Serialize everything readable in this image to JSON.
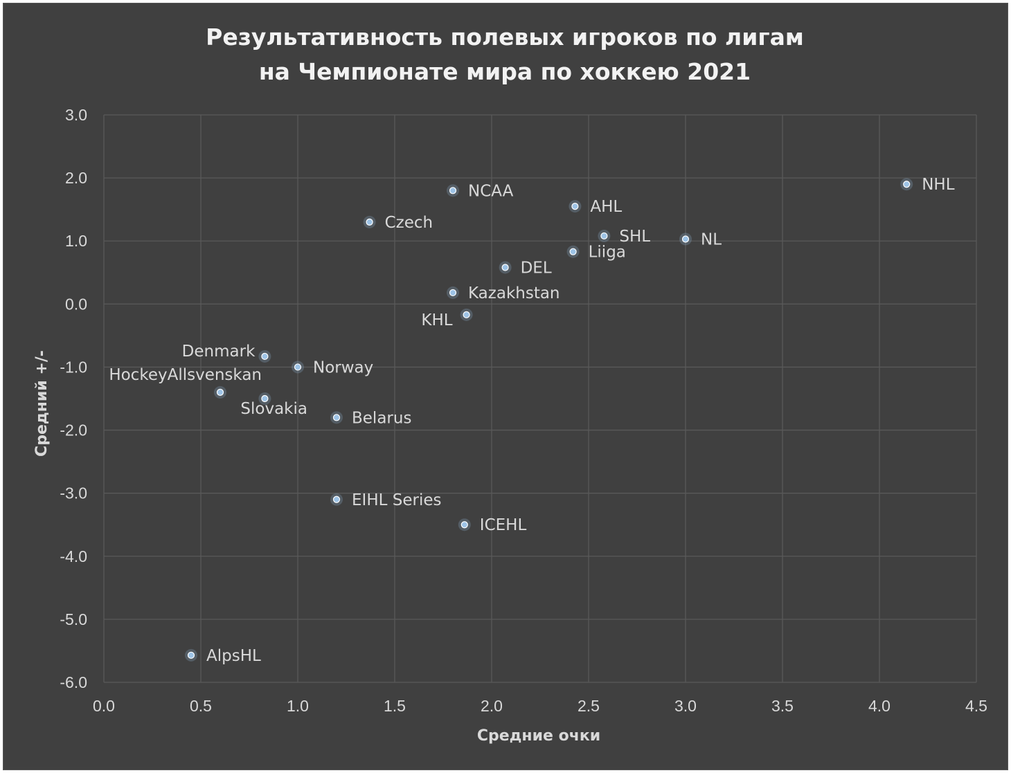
{
  "chart_data": {
    "type": "scatter",
    "title_line1": "Результативность полевых игроков по лигам",
    "title_line2": "на Чемпионате мира по хоккею 2021",
    "xlabel": "Средние очки",
    "ylabel": "Средний +/-",
    "xlim": [
      0,
      4.5
    ],
    "ylim": [
      -6,
      3
    ],
    "x_ticks": [
      "0.0",
      "0.5",
      "1.0",
      "1.5",
      "2.0",
      "2.5",
      "3.0",
      "3.5",
      "4.0",
      "4.5"
    ],
    "y_ticks": [
      "3.0",
      "2.0",
      "1.0",
      "0.0",
      "-1.0",
      "-2.0",
      "-3.0",
      "-4.0",
      "-5.0",
      "-6.0"
    ],
    "grid": true,
    "legend": "none",
    "marker_color": "#9dc3e6",
    "points": [
      {
        "label": "NHL",
        "x": 4.14,
        "y": 1.9
      },
      {
        "label": "NCAA",
        "x": 1.8,
        "y": 1.8
      },
      {
        "label": "AHL",
        "x": 2.43,
        "y": 1.55
      },
      {
        "label": "Czech",
        "x": 1.37,
        "y": 1.3
      },
      {
        "label": "SHL",
        "x": 2.58,
        "y": 1.08
      },
      {
        "label": "NL",
        "x": 3.0,
        "y": 1.03
      },
      {
        "label": "Liiga",
        "x": 2.42,
        "y": 0.83
      },
      {
        "label": "DEL",
        "x": 2.07,
        "y": 0.58
      },
      {
        "label": "Kazakhstan",
        "x": 1.8,
        "y": 0.18
      },
      {
        "label": "KHL",
        "x": 1.87,
        "y": -0.17
      },
      {
        "label": "Denmark",
        "x": 0.83,
        "y": -0.83
      },
      {
        "label": "Norway",
        "x": 1.0,
        "y": -1.0
      },
      {
        "label": "HockeyAllsvenskan",
        "x": 0.6,
        "y": -1.4
      },
      {
        "label": "Slovakia",
        "x": 0.83,
        "y": -1.5
      },
      {
        "label": "Belarus",
        "x": 1.2,
        "y": -1.8
      },
      {
        "label": "EIHL Series",
        "x": 1.2,
        "y": -3.1
      },
      {
        "label": "ICEHL",
        "x": 1.86,
        "y": -3.5
      },
      {
        "label": "AlpsHL",
        "x": 0.45,
        "y": -5.57
      }
    ]
  }
}
